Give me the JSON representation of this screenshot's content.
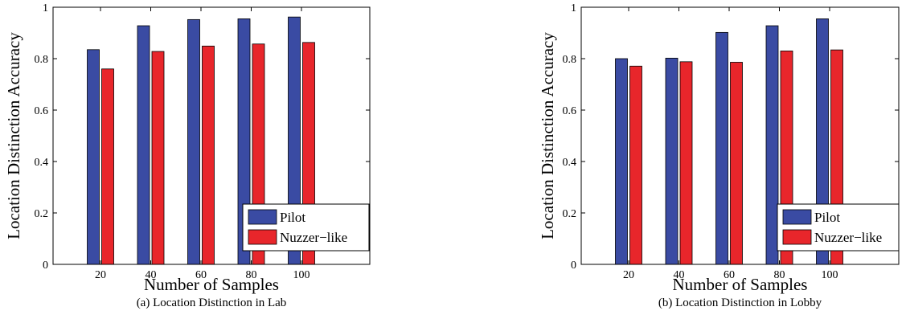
{
  "chart_data": [
    {
      "type": "bar",
      "caption": "(a) Location Distinction in Lab",
      "xlabel": "Number of Samples",
      "ylabel": "Location Distinction Accuracy",
      "categories": [
        "20",
        "40",
        "60",
        "80",
        "100"
      ],
      "series": [
        {
          "name": "Pilot",
          "color": "#3a4ba3",
          "values": [
            0.835,
            0.928,
            0.952,
            0.955,
            0.962
          ]
        },
        {
          "name": "Nuzzer−like",
          "color": "#e8262b",
          "values": [
            0.76,
            0.828,
            0.849,
            0.857,
            0.863
          ]
        }
      ],
      "ylim": [
        0,
        1
      ],
      "yticks": [
        "0",
        "0.2",
        "0.4",
        "0.6",
        "0.8",
        "1"
      ],
      "legend": "lower-right",
      "grid": false
    },
    {
      "type": "bar",
      "caption": "(b) Location Distinction in Lobby",
      "xlabel": "Number of Samples",
      "ylabel": "Location Distinction Accuracy",
      "categories": [
        "20",
        "40",
        "60",
        "80",
        "100"
      ],
      "series": [
        {
          "name": "Pilot",
          "color": "#3a4ba3",
          "values": [
            0.8,
            0.802,
            0.902,
            0.928,
            0.955
          ]
        },
        {
          "name": "Nuzzer−like",
          "color": "#e8262b",
          "values": [
            0.771,
            0.788,
            0.786,
            0.83,
            0.834
          ]
        }
      ],
      "ylim": [
        0,
        1
      ],
      "yticks": [
        "0",
        "0.2",
        "0.4",
        "0.6",
        "0.8",
        "1"
      ],
      "legend": "lower-right",
      "grid": false
    }
  ]
}
